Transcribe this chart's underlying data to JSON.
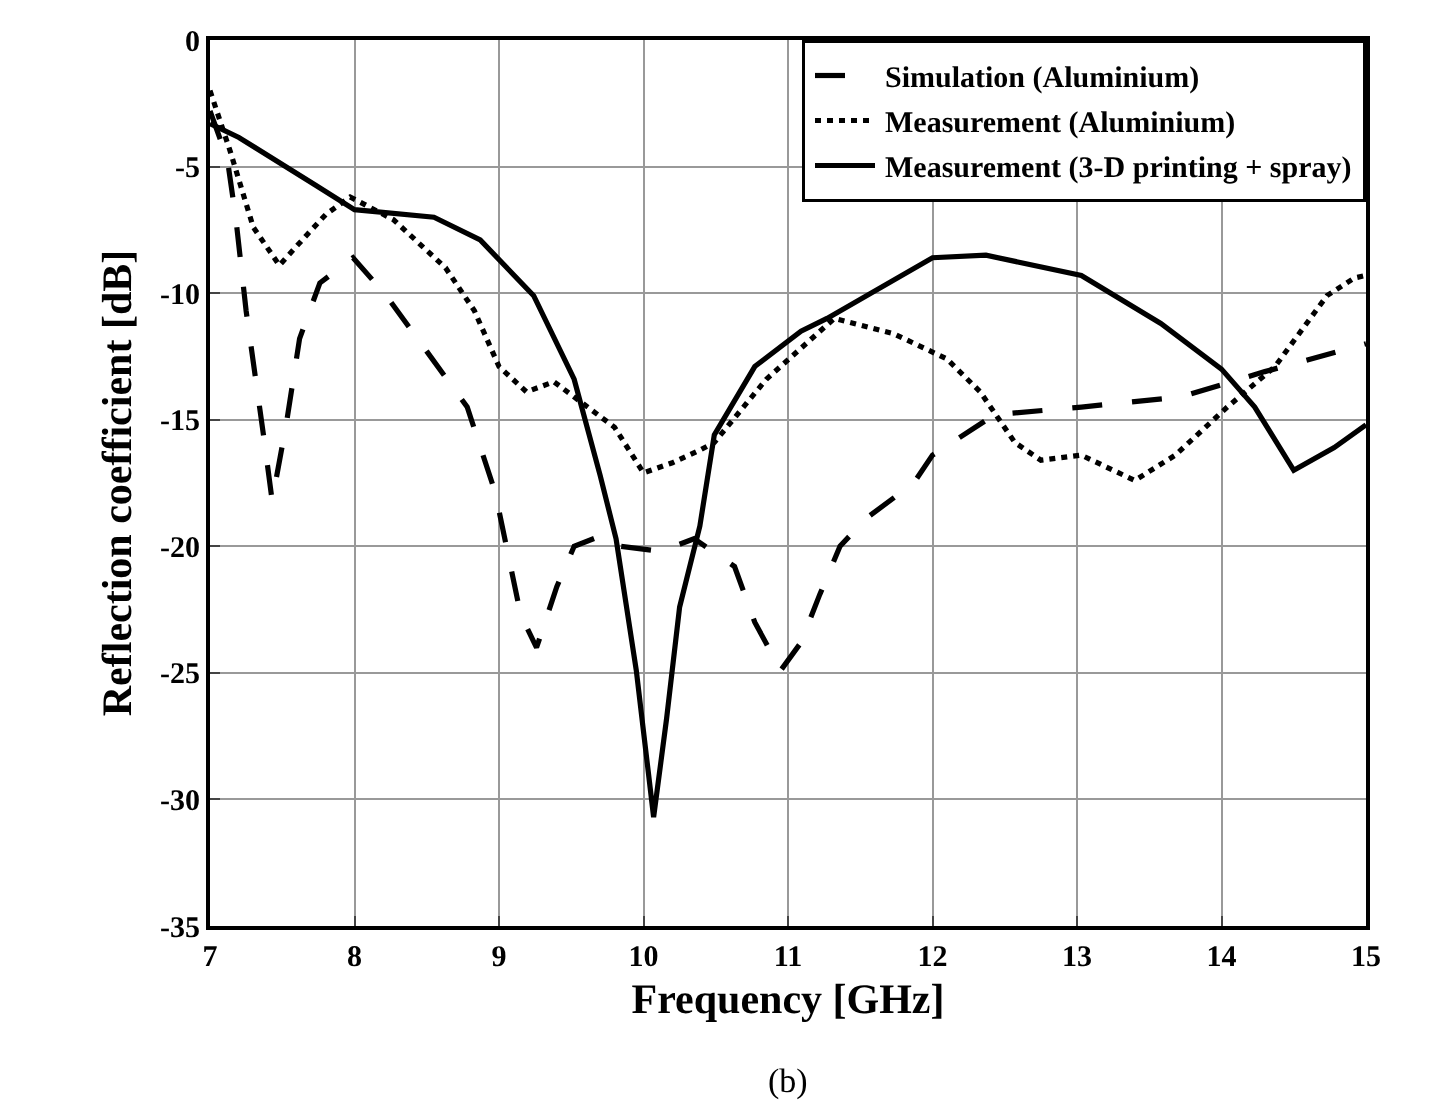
{
  "chart_data": {
    "type": "line",
    "xlabel": "Frequency [GHz]",
    "ylabel": "Reflection coefficient [dB]",
    "xlim": [
      7,
      15
    ],
    "xticks": [
      7,
      8,
      9,
      10,
      11,
      12,
      13,
      14,
      15
    ],
    "ylim": [
      -35,
      0
    ],
    "yticks": [
      -35,
      -30,
      -25,
      -20,
      -15,
      -10,
      -5,
      0
    ],
    "grid": true,
    "legend": "top right",
    "marker": "none",
    "annotations": [
      "(b)"
    ],
    "series": [
      {
        "name": "Simulation (Aluminium)",
        "color": "#000000",
        "line_style": "dashed",
        "x": [
          7.0,
          7.12,
          7.18,
          7.25,
          7.37,
          7.43,
          7.53,
          7.62,
          7.76,
          7.99,
          8.22,
          8.5,
          8.78,
          8.97,
          9.0,
          9.15,
          9.26,
          9.4,
          9.52,
          9.7,
          9.84,
          10.12,
          10.35,
          10.63,
          10.77,
          10.95,
          11.09,
          11.22,
          11.36,
          11.54,
          11.87,
          12.0,
          12.43,
          13.03,
          13.72,
          14.3,
          15.0
        ],
        "values": [
          -2.8,
          -4.7,
          -7.1,
          -10.7,
          -15.6,
          -18.2,
          -15.1,
          -11.8,
          -9.6,
          -8.6,
          -10.1,
          -12.3,
          -14.5,
          -17.8,
          -18.6,
          -22.7,
          -24,
          -21.6,
          -20,
          -19.6,
          -20,
          -20.2,
          -19.7,
          -20.8,
          -23,
          -24.9,
          -23.8,
          -21.9,
          -20,
          -18.9,
          -17.5,
          -16.4,
          -14.8,
          -14.5,
          -14.1,
          -13.1,
          -12
        ]
      },
      {
        "name": "Measurement (Aluminium)",
        "color": "#000000",
        "line_style": "dotted",
        "x": [
          7.0,
          7.14,
          7.3,
          7.48,
          7.67,
          7.8,
          7.97,
          8.27,
          8.63,
          8.83,
          9.0,
          9.19,
          9.38,
          9.52,
          9.8,
          10.0,
          10.2,
          10.39,
          10.49,
          10.85,
          11.32,
          11.73,
          12.1,
          12.33,
          12.57,
          12.75,
          13.03,
          13.4,
          13.68,
          14.04,
          14.37,
          14.73,
          14.92,
          15.0
        ],
        "values": [
          -2,
          -4.4,
          -7.4,
          -8.9,
          -7.7,
          -6.9,
          -6.2,
          -7.1,
          -9,
          -10.7,
          -12.9,
          -13.9,
          -13.5,
          -14.1,
          -15.3,
          -17.1,
          -16.7,
          -16.2,
          -15.9,
          -13.4,
          -11,
          -11.6,
          -12.6,
          -13.9,
          -15.9,
          -16.6,
          -16.4,
          -17.4,
          -16.4,
          -14.5,
          -12.9,
          -10.1,
          -9.4,
          -9.3
        ]
      },
      {
        "name": "Measurement (3-D printing + spray)",
        "color": "#000000",
        "line_style": "solid",
        "x": [
          7.0,
          7.2,
          7.72,
          8.0,
          8.55,
          8.87,
          9.24,
          9.52,
          9.7,
          9.81,
          9.95,
          10.07,
          10.16,
          10.25,
          10.39,
          10.49,
          10.77,
          11.09,
          11.27,
          12.0,
          12.37,
          13.03,
          13.58,
          14.0,
          14.23,
          14.5,
          14.78,
          15.0
        ],
        "values": [
          -3.3,
          -3.85,
          -5.7,
          -6.7,
          -7,
          -7.9,
          -10.1,
          -13.4,
          -17.2,
          -19.7,
          -24.9,
          -30.7,
          -26.8,
          -22.4,
          -19.2,
          -15.6,
          -12.9,
          -11.5,
          -11,
          -8.6,
          -8.5,
          -9.3,
          -11.2,
          -13,
          -14.5,
          -17,
          -16.1,
          -15.2
        ]
      }
    ]
  }
}
